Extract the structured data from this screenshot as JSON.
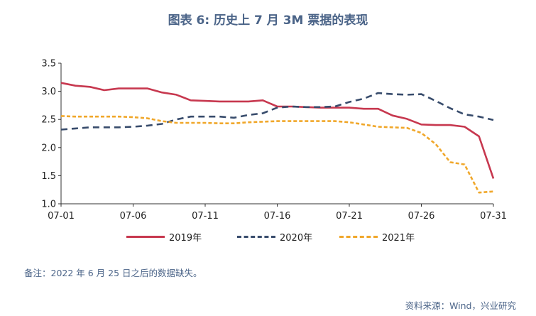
{
  "title": "图表 6:  历史上 7 月 3M 票据的表现",
  "note": "备注：2022 年 6 月 25 日之后的数据缺失。",
  "source": "资料来源：Wind，兴业研究",
  "colors": {
    "s2019": "#c7384f",
    "s2020": "#384c6c",
    "s2021": "#f0a72a",
    "axis": "#333333"
  },
  "chart_data": {
    "type": "line",
    "x": [
      "07-01",
      "07-02",
      "07-03",
      "07-04",
      "07-05",
      "07-06",
      "07-07",
      "07-08",
      "07-09",
      "07-10",
      "07-11",
      "07-12",
      "07-13",
      "07-14",
      "07-15",
      "07-16",
      "07-17",
      "07-18",
      "07-19",
      "07-20",
      "07-21",
      "07-22",
      "07-23",
      "07-24",
      "07-25",
      "07-26",
      "07-27",
      "07-28",
      "07-29",
      "07-30",
      "07-31"
    ],
    "xticks": [
      "07-01",
      "07-06",
      "07-11",
      "07-16",
      "07-21",
      "07-26",
      "07-31"
    ],
    "ylim": [
      1.0,
      3.5
    ],
    "yticks": [
      "1.0",
      "1.5",
      "2.0",
      "2.5",
      "3.0",
      "3.5"
    ],
    "series": [
      {
        "name": "2019年",
        "style": "solid",
        "values": [
          3.15,
          3.1,
          3.08,
          3.02,
          3.05,
          3.05,
          3.05,
          2.98,
          2.94,
          2.84,
          2.83,
          2.82,
          2.82,
          2.82,
          2.84,
          2.73,
          2.73,
          2.72,
          2.71,
          2.71,
          2.71,
          2.69,
          2.69,
          2.57,
          2.51,
          2.41,
          2.4,
          2.4,
          2.37,
          2.2,
          1.45
        ]
      },
      {
        "name": "2020年",
        "style": "dashed",
        "values": [
          2.32,
          2.34,
          2.36,
          2.36,
          2.36,
          2.37,
          2.39,
          2.42,
          2.5,
          2.55,
          2.55,
          2.55,
          2.53,
          2.58,
          2.61,
          2.71,
          2.73,
          2.72,
          2.72,
          2.73,
          2.81,
          2.87,
          2.97,
          2.95,
          2.94,
          2.95,
          2.83,
          2.7,
          2.59,
          2.55,
          2.49
        ]
      },
      {
        "name": "2021年",
        "style": "dotted",
        "values": [
          2.56,
          2.55,
          2.55,
          2.55,
          2.55,
          2.54,
          2.52,
          2.47,
          2.44,
          2.44,
          2.44,
          2.43,
          2.43,
          2.45,
          2.46,
          2.47,
          2.47,
          2.47,
          2.47,
          2.47,
          2.45,
          2.41,
          2.37,
          2.36,
          2.35,
          2.26,
          2.06,
          1.74,
          1.7,
          1.2,
          1.22
        ]
      }
    ]
  }
}
